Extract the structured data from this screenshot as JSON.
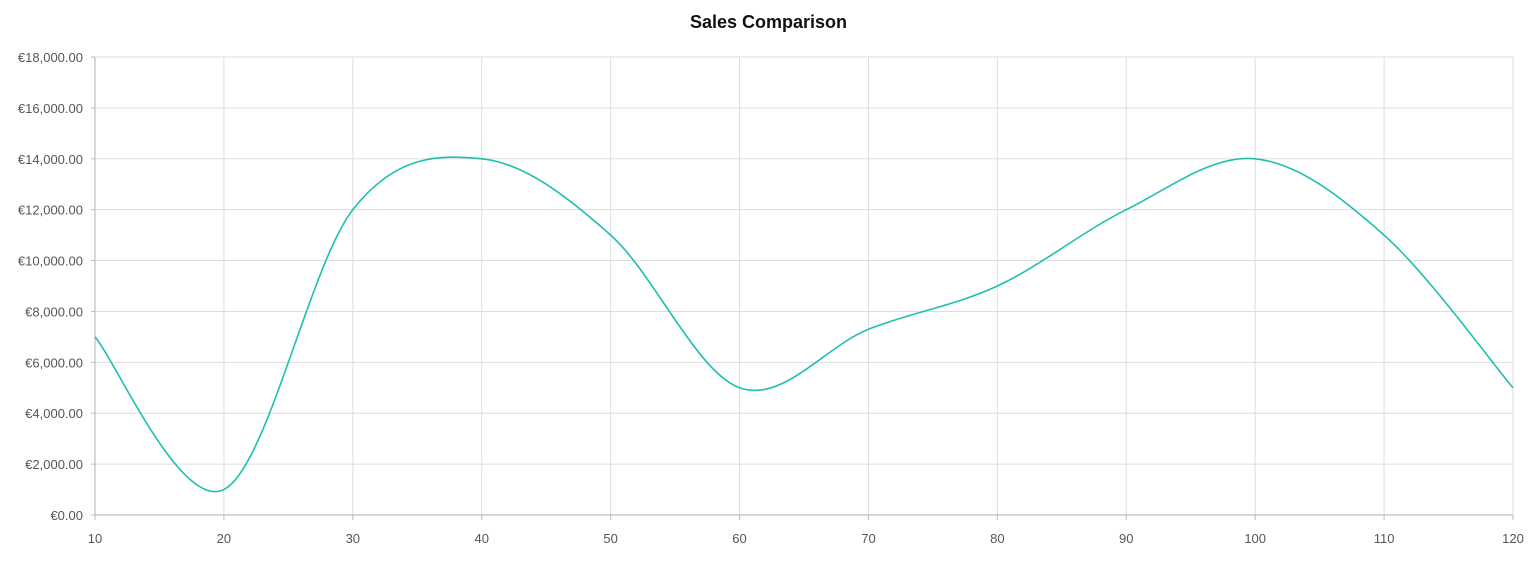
{
  "chart_data": {
    "type": "line",
    "title": "Sales Comparison",
    "xlabel": "",
    "ylabel": "",
    "x": [
      10,
      20,
      30,
      40,
      50,
      60,
      70,
      80,
      90,
      100,
      110,
      120
    ],
    "series": [
      {
        "values": [
          7000,
          1000,
          12000,
          14000,
          11000,
          5000,
          7300,
          9000,
          12000,
          14000,
          11000,
          5000
        ],
        "color": "#1fbfb0"
      }
    ],
    "xlim": [
      10,
      120
    ],
    "ylim": [
      0,
      18000
    ],
    "x_ticks": [
      "10",
      "20",
      "30",
      "40",
      "50",
      "60",
      "70",
      "80",
      "90",
      "100",
      "110",
      "120"
    ],
    "y_ticks": [
      "€0.00",
      "€2,000.00",
      "€4,000.00",
      "€6,000.00",
      "€8,000.00",
      "€10,000.00",
      "€12,000.00",
      "€14,000.00",
      "€16,000.00",
      "€18,000.00"
    ],
    "y_tick_values": [
      0,
      2000,
      4000,
      6000,
      8000,
      10000,
      12000,
      14000,
      16000,
      18000
    ],
    "grid": true,
    "legend": "none"
  }
}
